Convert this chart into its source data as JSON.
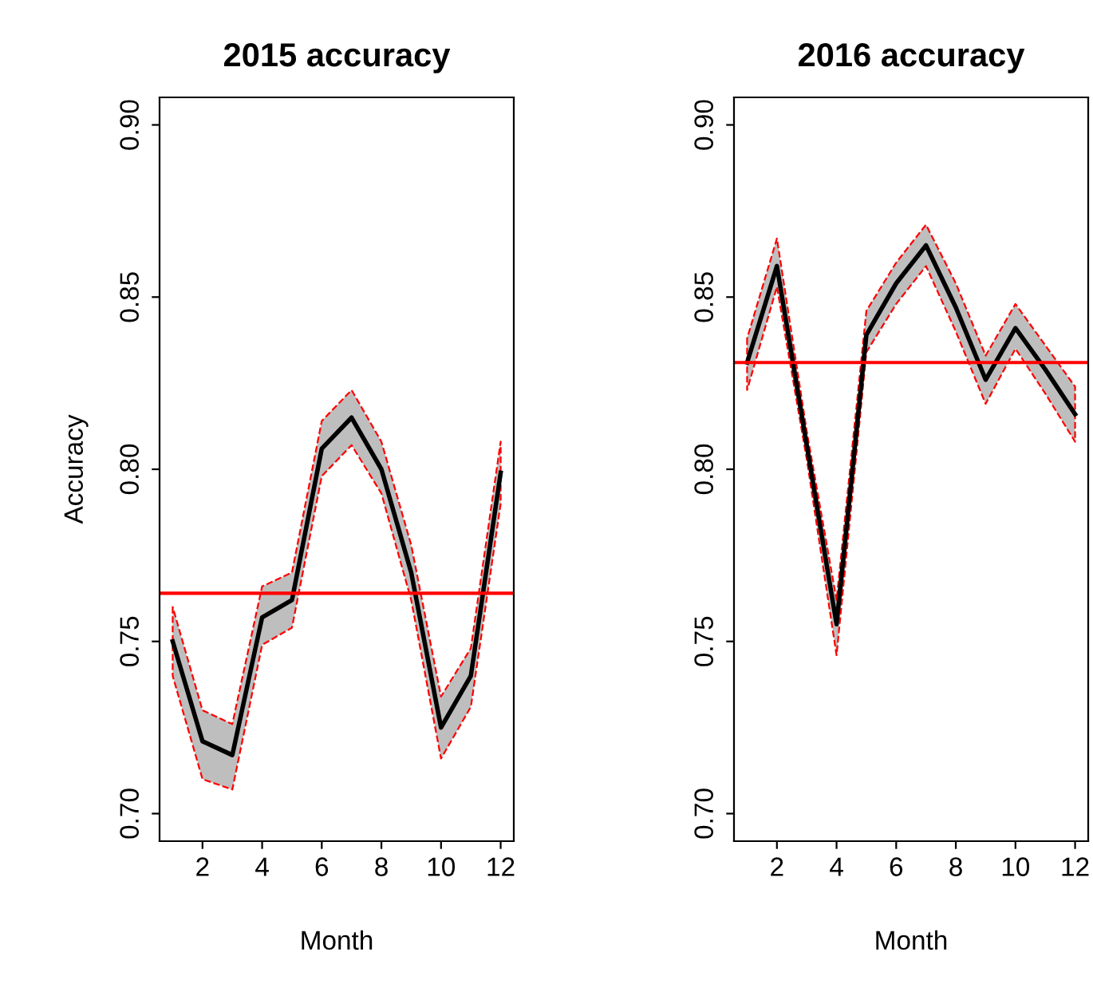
{
  "chart_data": [
    {
      "type": "line",
      "title": "2015 accuracy",
      "xlabel": "Month",
      "ylabel": "Accuracy",
      "x": [
        1,
        2,
        3,
        4,
        5,
        6,
        7,
        8,
        9,
        10,
        11,
        12
      ],
      "series": [
        {
          "color": "#000000",
          "values": [
            0.75,
            0.721,
            0.717,
            0.757,
            0.762,
            0.806,
            0.815,
            0.8,
            0.77,
            0.725,
            0.74,
            0.799
          ],
          "lower": [
            0.74,
            0.71,
            0.707,
            0.749,
            0.754,
            0.798,
            0.807,
            0.793,
            0.762,
            0.716,
            0.731,
            0.79
          ],
          "upper": [
            0.76,
            0.73,
            0.726,
            0.766,
            0.77,
            0.814,
            0.823,
            0.808,
            0.778,
            0.734,
            0.748,
            0.808
          ]
        }
      ],
      "ref_lines": [
        {
          "axis": "y",
          "value": 0.764,
          "color": "#ff0000"
        }
      ],
      "xlim": [
        0.56,
        12.44
      ],
      "xticks": [
        2,
        4,
        6,
        8,
        10,
        12
      ],
      "ylim": [
        0.692,
        0.908
      ],
      "yticks": [
        {
          "value": 0.7,
          "label": "0.70"
        },
        {
          "value": 0.75,
          "label": "0.75"
        },
        {
          "value": 0.8,
          "label": "0.80"
        },
        {
          "value": 0.85,
          "label": "0.85"
        },
        {
          "value": 0.9,
          "label": "0.90"
        }
      ],
      "grid": false,
      "line_style": "solid"
    },
    {
      "type": "line",
      "title": "2016 accuracy",
      "xlabel": "Month",
      "x": [
        1,
        2,
        3,
        4,
        5,
        6,
        7,
        8,
        9,
        10,
        11,
        12
      ],
      "series": [
        {
          "color": "#000000",
          "values": [
            0.831,
            0.859,
            0.807,
            0.755,
            0.839,
            0.854,
            0.865,
            0.847,
            0.826,
            0.841,
            0.829,
            0.816
          ],
          "lower": [
            0.823,
            0.853,
            0.803,
            0.746,
            0.834,
            0.848,
            0.859,
            0.84,
            0.819,
            0.835,
            0.822,
            0.808
          ],
          "upper": [
            0.838,
            0.867,
            0.811,
            0.762,
            0.846,
            0.86,
            0.871,
            0.854,
            0.833,
            0.848,
            0.836,
            0.824
          ]
        }
      ],
      "ref_lines": [
        {
          "axis": "y",
          "value": 0.831,
          "color": "#ff0000"
        }
      ],
      "xlim": [
        0.56,
        12.44
      ],
      "xticks": [
        2,
        4,
        6,
        8,
        10,
        12
      ],
      "ylim": [
        0.692,
        0.908
      ],
      "yticks": [
        {
          "value": 0.7,
          "label": "0.70"
        },
        {
          "value": 0.75,
          "label": "0.75"
        },
        {
          "value": 0.8,
          "label": "0.80"
        },
        {
          "value": 0.85,
          "label": "0.85"
        },
        {
          "value": 0.9,
          "label": "0.90"
        }
      ],
      "grid": false,
      "line_style": "solid"
    }
  ]
}
